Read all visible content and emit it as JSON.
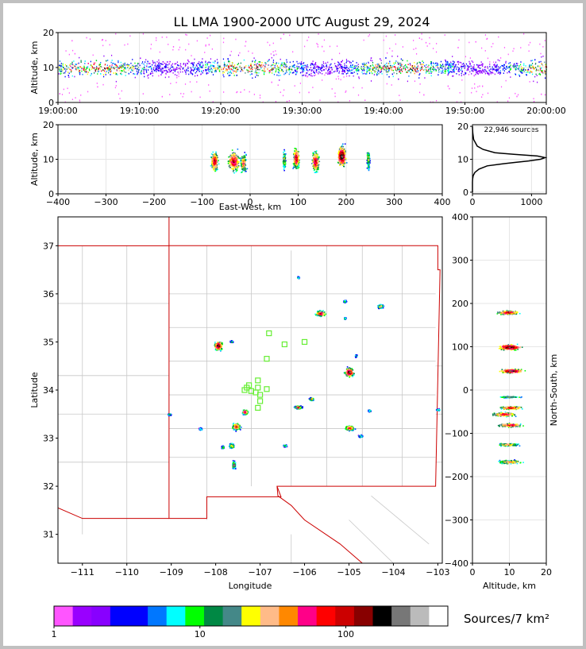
{
  "title": "LL LMA 1900-2000 UTC August 29, 2024",
  "colors": {
    "frame": "#c0c0c0",
    "state_line": "#cc0000",
    "county_line": "#c8c8c8",
    "station": "#66ee33",
    "gridline": "#e6e6e6"
  },
  "chart_data": [
    {
      "id": "time-height",
      "type": "heatmap",
      "xlabel": "",
      "ylabel": "Altitude, km",
      "xticks": [
        "19:00:00",
        "19:10:00",
        "19:20:00",
        "19:30:00",
        "19:40:00",
        "19:50:00",
        "20:00:00"
      ],
      "xlim_minutes": [
        0,
        60
      ],
      "ylim": [
        0,
        20
      ],
      "yticks": [
        0,
        10,
        20
      ],
      "note_alt_band_km": [
        7,
        13
      ]
    },
    {
      "id": "east-west-altitude",
      "type": "heatmap",
      "xlabel": "East-West, km",
      "ylabel": "Altitude, km",
      "xlim": [
        -400,
        400
      ],
      "xticks": [
        -400,
        -300,
        -200,
        -100,
        0,
        100,
        200,
        300,
        400
      ],
      "ylim": [
        0,
        20
      ],
      "yticks": [
        0,
        10,
        20
      ],
      "clusters": [
        {
          "x": -75,
          "alt": 9.5,
          "width": 14,
          "intensity": 3
        },
        {
          "x": -35,
          "alt": 9.5,
          "width": 22,
          "intensity": 3
        },
        {
          "x": -15,
          "alt": 9,
          "width": 12,
          "intensity": 2
        },
        {
          "x": 70,
          "alt": 10,
          "width": 6,
          "intensity": 1
        },
        {
          "x": 95,
          "alt": 10.5,
          "width": 12,
          "intensity": 3
        },
        {
          "x": 135,
          "alt": 9.5,
          "width": 14,
          "intensity": 3
        },
        {
          "x": 190,
          "alt": 11,
          "width": 16,
          "intensity": 4
        },
        {
          "x": 245,
          "alt": 10,
          "width": 6,
          "intensity": 1
        }
      ]
    },
    {
      "id": "altitude-histogram",
      "type": "line",
      "annotation": "22,946 sources",
      "xlim": [
        0,
        1250
      ],
      "xticks": [
        0,
        1000
      ],
      "ylim": [
        0,
        20
      ],
      "yticks": [
        0,
        10,
        20
      ],
      "alt": [
        20,
        18,
        16,
        14,
        13,
        12,
        11.5,
        11,
        10.5,
        10,
        9.5,
        9,
        8.5,
        8,
        7,
        6,
        5,
        4,
        3,
        2,
        1,
        0
      ],
      "count": [
        0,
        5,
        20,
        80,
        180,
        380,
        700,
        1100,
        1230,
        1150,
        950,
        700,
        460,
        250,
        110,
        40,
        12,
        3,
        0,
        0,
        0,
        0
      ]
    },
    {
      "id": "plan-view",
      "type": "heatmap",
      "xlabel": "Longitude",
      "ylabel": "Latitude",
      "xlim": [
        -111.55,
        -102.9
      ],
      "xticks": [
        -111,
        -110,
        -109,
        -108,
        -107,
        -106,
        -105,
        -104,
        -103
      ],
      "ylim": [
        30.4,
        37.6
      ],
      "yticks": [
        31,
        32,
        33,
        34,
        35,
        36,
        37
      ],
      "storms": [
        {
          "lon": -107.95,
          "lat": 34.93,
          "w": 0.18,
          "h": 0.18,
          "intensity": 4
        },
        {
          "lon": -107.65,
          "lat": 35.02,
          "w": 0.06,
          "h": 0.04,
          "intensity": 1
        },
        {
          "lon": -107.35,
          "lat": 33.55,
          "w": 0.12,
          "h": 0.1,
          "intensity": 3
        },
        {
          "lon": -107.55,
          "lat": 33.25,
          "w": 0.18,
          "h": 0.14,
          "intensity": 3
        },
        {
          "lon": -107.65,
          "lat": 32.85,
          "w": 0.1,
          "h": 0.1,
          "intensity": 2
        },
        {
          "lon": -107.6,
          "lat": 32.45,
          "w": 0.08,
          "h": 0.16,
          "intensity": 2
        },
        {
          "lon": -107.85,
          "lat": 32.82,
          "w": 0.06,
          "h": 0.06,
          "intensity": 1
        },
        {
          "lon": -108.35,
          "lat": 33.2,
          "w": 0.06,
          "h": 0.05,
          "intensity": 1
        },
        {
          "lon": -106.15,
          "lat": 33.65,
          "w": 0.16,
          "h": 0.06,
          "intensity": 3
        },
        {
          "lon": -105.85,
          "lat": 33.82,
          "w": 0.1,
          "h": 0.06,
          "intensity": 2
        },
        {
          "lon": -106.45,
          "lat": 32.85,
          "w": 0.08,
          "h": 0.05,
          "intensity": 1
        },
        {
          "lon": -105.0,
          "lat": 34.38,
          "w": 0.2,
          "h": 0.18,
          "intensity": 4
        },
        {
          "lon": -104.85,
          "lat": 34.72,
          "w": 0.05,
          "h": 0.05,
          "intensity": 1
        },
        {
          "lon": -105.0,
          "lat": 33.22,
          "w": 0.2,
          "h": 0.1,
          "intensity": 3
        },
        {
          "lon": -104.75,
          "lat": 33.05,
          "w": 0.1,
          "h": 0.05,
          "intensity": 1
        },
        {
          "lon": -104.55,
          "lat": 33.58,
          "w": 0.06,
          "h": 0.04,
          "intensity": 1
        },
        {
          "lon": -105.65,
          "lat": 35.6,
          "w": 0.24,
          "h": 0.12,
          "intensity": 3
        },
        {
          "lon": -105.1,
          "lat": 35.85,
          "w": 0.06,
          "h": 0.05,
          "intensity": 1
        },
        {
          "lon": -104.3,
          "lat": 35.75,
          "w": 0.12,
          "h": 0.08,
          "intensity": 2
        },
        {
          "lon": -105.1,
          "lat": 35.5,
          "w": 0.04,
          "h": 0.04,
          "intensity": 1
        },
        {
          "lon": -106.15,
          "lat": 36.35,
          "w": 0.04,
          "h": 0.04,
          "intensity": 1
        },
        {
          "lon": -109.05,
          "lat": 33.5,
          "w": 0.08,
          "h": 0.04,
          "intensity": 1
        },
        {
          "lon": -103.0,
          "lat": 33.6,
          "w": 0.08,
          "h": 0.04,
          "intensity": 1
        }
      ],
      "stations": [
        {
          "lon": -106.8,
          "lat": 35.18
        },
        {
          "lon": -106.45,
          "lat": 34.95
        },
        {
          "lon": -106.0,
          "lat": 35.0
        },
        {
          "lon": -106.85,
          "lat": 34.65
        },
        {
          "lon": -107.05,
          "lat": 34.2
        },
        {
          "lon": -107.25,
          "lat": 34.1
        },
        {
          "lon": -107.35,
          "lat": 34.0
        },
        {
          "lon": -107.2,
          "lat": 33.98
        },
        {
          "lon": -107.05,
          "lat": 34.05
        },
        {
          "lon": -107.0,
          "lat": 33.9
        },
        {
          "lon": -106.85,
          "lat": 34.02
        },
        {
          "lon": -107.0,
          "lat": 33.77
        },
        {
          "lon": -107.05,
          "lat": 33.63
        },
        {
          "lon": -107.3,
          "lat": 34.05
        },
        {
          "lon": -107.1,
          "lat": 33.95
        }
      ]
    },
    {
      "id": "north-south-altitude",
      "type": "heatmap",
      "xlabel": "Altitude, km",
      "ylabel": "North-South, km",
      "xlim": [
        0,
        20
      ],
      "xticks": [
        0,
        10,
        20
      ],
      "ylim": [
        -400,
        400
      ],
      "yticks": [
        -400,
        -300,
        -200,
        -100,
        0,
        100,
        200,
        300,
        400
      ],
      "clusters": [
        {
          "ns": 180,
          "alt": 9.5,
          "h": 8,
          "intensity": 3
        },
        {
          "ns": 100,
          "alt": 10,
          "h": 12,
          "intensity": 4
        },
        {
          "ns": 45,
          "alt": 10.5,
          "h": 8,
          "intensity": 4
        },
        {
          "ns": -15,
          "alt": 10,
          "h": 4,
          "intensity": 1
        },
        {
          "ns": -40,
          "alt": 10.5,
          "h": 6,
          "intensity": 3
        },
        {
          "ns": -55,
          "alt": 8.5,
          "h": 8,
          "intensity": 3
        },
        {
          "ns": -80,
          "alt": 10,
          "h": 8,
          "intensity": 3
        },
        {
          "ns": -125,
          "alt": 9.5,
          "h": 6,
          "intensity": 2
        },
        {
          "ns": -165,
          "alt": 10,
          "h": 8,
          "intensity": 2
        }
      ]
    },
    {
      "id": "colorbar",
      "type": "colorbar",
      "units": "Sources/7 km²",
      "ticks": [
        "1",
        "10",
        "100"
      ],
      "scale": "log",
      "range": [
        1,
        500
      ],
      "colors": [
        "#ff55ff",
        "#9900ff",
        "#8800ff",
        "#0000ff",
        "#0000ff",
        "#0077ff",
        "#00ffff",
        "#00ff00",
        "#008844",
        "#448888",
        "#ffff00",
        "#ffbb88",
        "#ff8800",
        "#ff0088",
        "#ff0000",
        "#cc0000",
        "#880000",
        "#000000",
        "#777777",
        "#bbbbbb",
        "#ffffff"
      ]
    }
  ]
}
